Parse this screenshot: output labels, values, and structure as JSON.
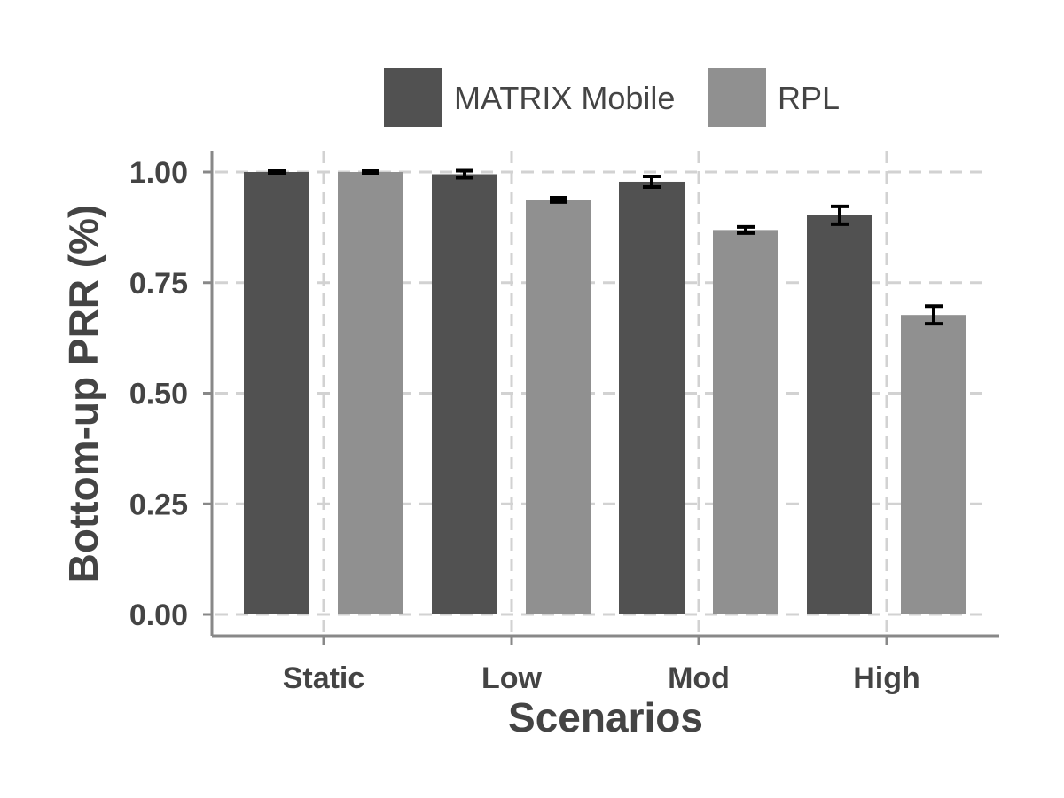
{
  "chart_data": {
    "type": "bar",
    "title": "",
    "xlabel": "Scenarios",
    "ylabel": "Bottom-up PRR (%)",
    "categories": [
      "Static",
      "Low",
      "Mod",
      "High"
    ],
    "series": [
      {
        "name": "MATRIX Mobile",
        "color": "#515151",
        "values": [
          1.0,
          0.995,
          0.978,
          0.902
        ],
        "error": [
          0.002,
          0.008,
          0.012,
          0.02
        ]
      },
      {
        "name": "RPL",
        "color": "#909090",
        "values": [
          1.0,
          0.937,
          0.869,
          0.677
        ],
        "error": [
          0.002,
          0.005,
          0.007,
          0.02
        ]
      }
    ],
    "ylim": [
      0,
      1.05
    ],
    "yticks": [
      "0.00",
      "0.25",
      "0.50",
      "0.75",
      "1.00"
    ],
    "grid": true,
    "legend_position": "top"
  }
}
